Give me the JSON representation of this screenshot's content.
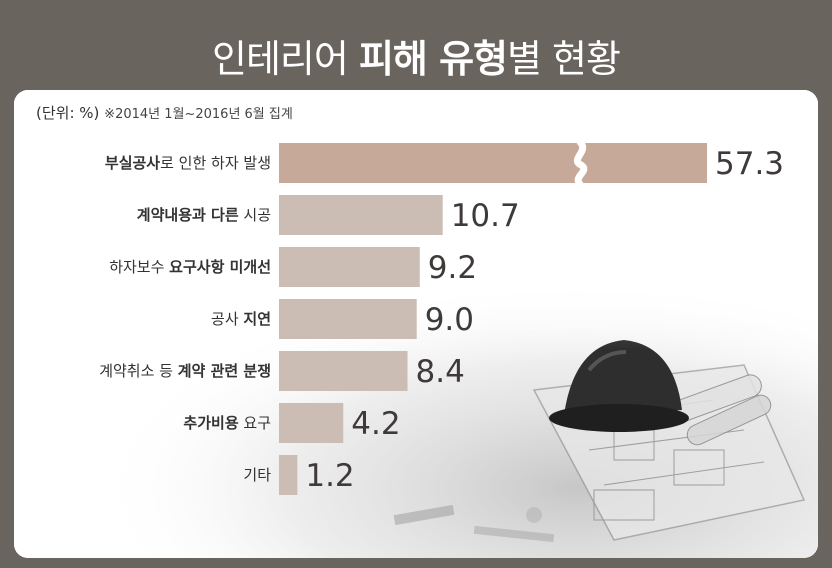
{
  "title": {
    "normal1": "인테리어",
    "bold": "피해 유형",
    "normal2": "별 현황"
  },
  "unit_note": {
    "unit": "(단위: %)",
    "period": "※2014년 1월~2016년 6월 집계"
  },
  "colors": {
    "frame": "#6a645f",
    "bar_primary": "#c7a999",
    "bar_secondary": "#cbbdb4"
  },
  "chart_data": {
    "type": "bar",
    "orientation": "horizontal",
    "axis_break": true,
    "categories": [
      [
        {
          "t": "부실공사",
          "b": true
        },
        {
          "t": "로 인한 하자 발생",
          "b": false
        }
      ],
      [
        {
          "t": "계약내용과 다른",
          "b": true
        },
        {
          "t": " 시공",
          "b": false
        }
      ],
      [
        {
          "t": "하자보수 ",
          "b": false
        },
        {
          "t": "요구사항 미개선",
          "b": true
        }
      ],
      [
        {
          "t": "공사 ",
          "b": false
        },
        {
          "t": "지연",
          "b": true
        }
      ],
      [
        {
          "t": "계약취소 등 ",
          "b": false
        },
        {
          "t": "계약 관련 분쟁",
          "b": true
        }
      ],
      [
        {
          "t": "추가비용",
          "b": true
        },
        {
          "t": " 요구",
          "b": false
        }
      ],
      [
        {
          "t": "기타",
          "b": false
        }
      ]
    ],
    "values": [
      57.3,
      10.7,
      9.2,
      9.0,
      8.4,
      4.2,
      1.2
    ],
    "value_labels": [
      "57.3",
      "10.7",
      "9.2",
      "9.0",
      "8.4",
      "4.2",
      "1.2"
    ]
  }
}
